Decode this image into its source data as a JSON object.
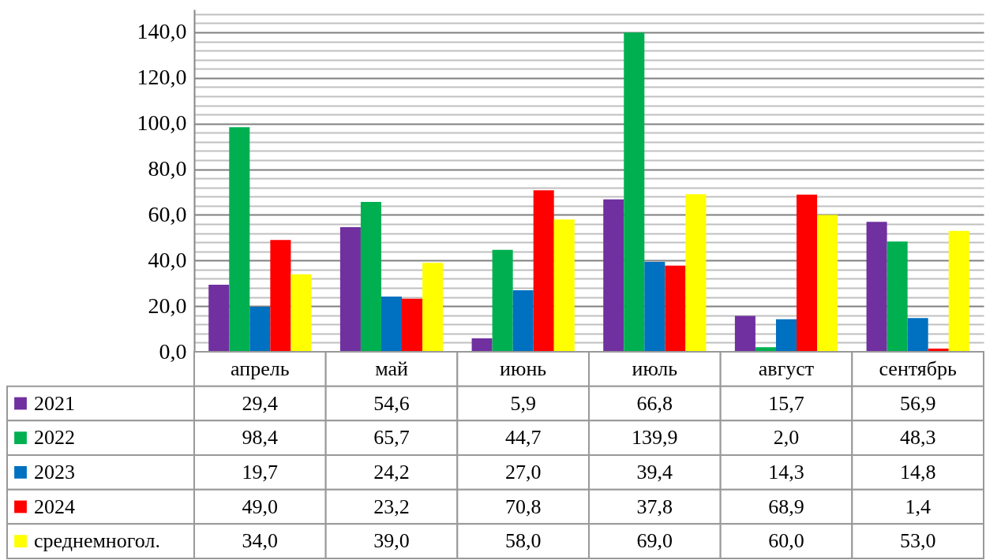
{
  "chart_data": {
    "type": "bar",
    "categories": [
      "апрель",
      "май",
      "июнь",
      "июль",
      "август",
      "сентябрь"
    ],
    "series": [
      {
        "name": "2021",
        "color": "#7030a0",
        "values": [
          29.4,
          54.6,
          5.9,
          66.8,
          15.7,
          56.9
        ],
        "value_labels": [
          "29,4",
          "54,6",
          "5,9",
          "66,8",
          "15,7",
          "56,9"
        ]
      },
      {
        "name": "2022",
        "color": "#00b050",
        "values": [
          98.4,
          65.7,
          44.7,
          139.9,
          2.0,
          48.3
        ],
        "value_labels": [
          "98,4",
          "65,7",
          "44,7",
          "139,9",
          "2,0",
          "48,3"
        ]
      },
      {
        "name": "2023",
        "color": "#0070c0",
        "values": [
          19.7,
          24.2,
          27.0,
          39.4,
          14.3,
          14.8
        ],
        "value_labels": [
          "19,7",
          "24,2",
          "27,0",
          "39,4",
          "14,3",
          "14,8"
        ]
      },
      {
        "name": "2024",
        "color": "#ff0000",
        "values": [
          49.0,
          23.2,
          70.8,
          37.8,
          68.9,
          1.4
        ],
        "value_labels": [
          "49,0",
          "23,2",
          "70,8",
          "37,8",
          "68,9",
          "1,4"
        ]
      },
      {
        "name": "среднемногол.",
        "color": "#ffff00",
        "values": [
          34.0,
          39.0,
          58.0,
          69.0,
          60.0,
          53.0
        ],
        "value_labels": [
          "34,0",
          "39,0",
          "58,0",
          "69,0",
          "60,0",
          "53,0"
        ]
      }
    ],
    "ylim": [
      0,
      150
    ],
    "yticks": [
      {
        "value": 0,
        "label": "0,0"
      },
      {
        "value": 4,
        "label": null
      },
      {
        "value": 8,
        "label": null
      },
      {
        "value": 12,
        "label": null
      },
      {
        "value": 16,
        "label": null
      },
      {
        "value": 20,
        "label": "20,0"
      },
      {
        "value": 24,
        "label": null
      },
      {
        "value": 28,
        "label": null
      },
      {
        "value": 32,
        "label": null
      },
      {
        "value": 36,
        "label": null
      },
      {
        "value": 40,
        "label": "40,0"
      },
      {
        "value": 44,
        "label": null
      },
      {
        "value": 48,
        "label": null
      },
      {
        "value": 52,
        "label": null
      },
      {
        "value": 56,
        "label": null
      },
      {
        "value": 60,
        "label": "60,0"
      },
      {
        "value": 64,
        "label": null
      },
      {
        "value": 68,
        "label": null
      },
      {
        "value": 72,
        "label": null
      },
      {
        "value": 76,
        "label": null
      },
      {
        "value": 80,
        "label": "80,0"
      },
      {
        "value": 84,
        "label": null
      },
      {
        "value": 88,
        "label": null
      },
      {
        "value": 92,
        "label": null
      },
      {
        "value": 96,
        "label": null
      },
      {
        "value": 100,
        "label": "100,0"
      },
      {
        "value": 104,
        "label": null
      },
      {
        "value": 108,
        "label": null
      },
      {
        "value": 112,
        "label": null
      },
      {
        "value": 116,
        "label": null
      },
      {
        "value": 120,
        "label": "120,0"
      },
      {
        "value": 124,
        "label": null
      },
      {
        "value": 128,
        "label": null
      },
      {
        "value": 132,
        "label": null
      },
      {
        "value": 136,
        "label": null
      },
      {
        "value": 140,
        "label": "140,0"
      },
      {
        "value": 144,
        "label": null
      },
      {
        "value": 148,
        "label": null
      }
    ],
    "grid": true,
    "legend": "bottom"
  }
}
